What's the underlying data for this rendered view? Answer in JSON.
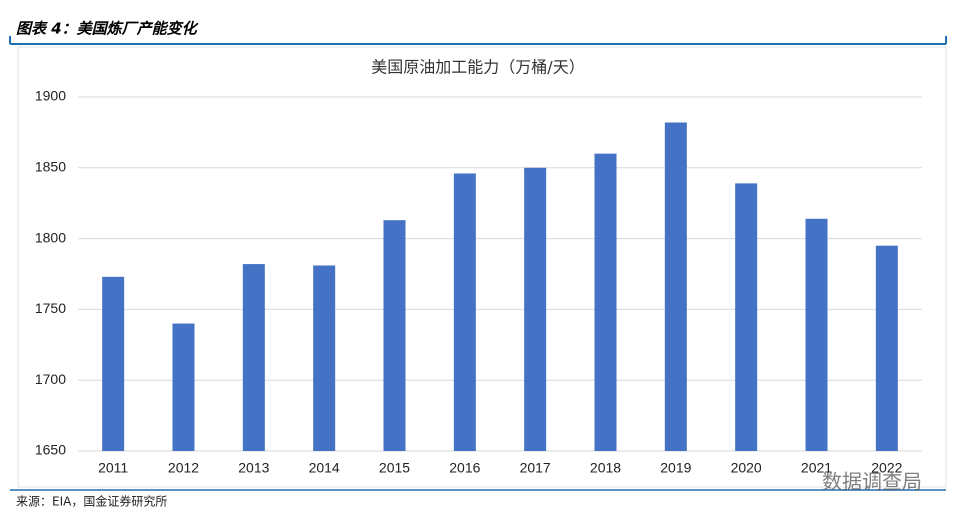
{
  "header": {
    "title": "图表 4：美国炼厂产能变化"
  },
  "chart_data": {
    "type": "bar",
    "title": "美国原油加工能力（万桶/天）",
    "categories": [
      "2011",
      "2012",
      "2013",
      "2014",
      "2015",
      "2016",
      "2017",
      "2018",
      "2019",
      "2020",
      "2021",
      "2022"
    ],
    "values": [
      1773,
      1740,
      1782,
      1781,
      1813,
      1846,
      1850,
      1860,
      1882,
      1839,
      1814,
      1795
    ],
    "color": "#4472c4",
    "ylim": [
      1650,
      1900
    ],
    "yticks": [
      1650,
      1700,
      1750,
      1800,
      1850,
      1900
    ],
    "grid": true
  },
  "footer": {
    "source": "来源：EIA，国金证券研究所"
  },
  "watermark": "数据调查局"
}
